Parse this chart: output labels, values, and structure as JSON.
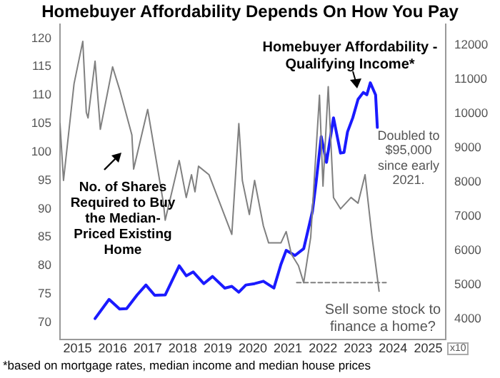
{
  "chart_data": {
    "type": "line",
    "title": "Homebuyer Affordability Depends On How You Pay",
    "y2label": "x10",
    "xlim": [
      2015,
      2026
    ],
    "xticks": [
      {
        "value": 2015.5,
        "label": "2015"
      },
      {
        "value": 2016.5,
        "label": "2016"
      },
      {
        "value": 2017.5,
        "label": "2017"
      },
      {
        "value": 2018.5,
        "label": "2018"
      },
      {
        "value": 2019.5,
        "label": "2019"
      },
      {
        "value": 2020.5,
        "label": "2020"
      },
      {
        "value": 2021.5,
        "label": "2021"
      },
      {
        "value": 2022.5,
        "label": "2022"
      },
      {
        "value": 2023.5,
        "label": "2023"
      },
      {
        "value": 2024.5,
        "label": "2024"
      },
      {
        "value": 2025.5,
        "label": "2025"
      }
    ],
    "ylim": [
      67,
      122.5
    ],
    "yticks": [
      70,
      75,
      80,
      85,
      90,
      95,
      100,
      105,
      110,
      115,
      120
    ],
    "y2lim": [
      3400,
      12600
    ],
    "y2ticks": [
      4000,
      5000,
      6000,
      7000,
      8000,
      9000,
      10000,
      11000,
      12000
    ],
    "grid": false,
    "legend": false,
    "marker": "none",
    "series": [
      {
        "name": "No. of Shares Required to Buy the Median- Priced Existing Home",
        "color": "#808080",
        "x": [
          2015,
          2015.1,
          2015.4,
          2015.65,
          2015.75,
          2015.8,
          2016,
          2016.15,
          2016.5,
          2016.7,
          2017.05,
          2017.1,
          2017.5,
          2017.95,
          2018,
          2018.4,
          2018.6,
          2018.75,
          2018.85,
          2018.95,
          2019.25,
          2019.9,
          2020.1,
          2020.2,
          2020.4,
          2020.55,
          2020.8,
          2020.95,
          2021.3,
          2021.45,
          2021.6,
          2021.8,
          2021.95,
          2022.15,
          2022.4,
          2022.5,
          2022.65,
          2022.8,
          2023,
          2023.3,
          2023.5,
          2023.7,
          2023.9,
          2024.1
        ],
        "values": [
          105,
          95,
          112,
          119.5,
          107,
          106,
          116,
          104,
          115,
          111,
          103,
          97,
          107.5,
          91,
          88,
          98.5,
          92,
          96,
          93,
          97.5,
          96,
          85.5,
          105,
          95,
          89,
          95,
          87,
          84,
          84,
          86,
          82,
          80,
          77,
          85,
          110,
          94,
          111.5,
          92,
          90,
          92,
          91,
          96,
          85,
          75.5
        ]
      },
      {
        "name": "Homebuyer Affordability - Qualifying Income*",
        "color": "#1a1aff",
        "axis": "y2",
        "x": [
          2016,
          2016.4,
          2016.7,
          2016.9,
          2017.2,
          2017.45,
          2017.7,
          2018,
          2018.4,
          2018.6,
          2018.8,
          2019.1,
          2019.35,
          2019.7,
          2019.9,
          2020.1,
          2020.3,
          2020.55,
          2020.8,
          2021.1,
          2021.3,
          2021.45,
          2021.7,
          2021.95,
          2022.2,
          2022.3,
          2022.45,
          2022.6,
          2022.8,
          2023,
          2023.1,
          2023.2,
          2023.35,
          2023.5,
          2023.65,
          2023.75,
          2023.85,
          2024,
          2024.05
        ],
        "values": [
          4010,
          4570,
          4290,
          4300,
          4700,
          4990,
          4690,
          4700,
          5550,
          5260,
          5370,
          5030,
          5240,
          4900,
          4950,
          4780,
          4990,
          5030,
          5100,
          4900,
          5590,
          6000,
          5850,
          6050,
          7140,
          7960,
          9320,
          8570,
          9870,
          8840,
          8860,
          9460,
          9870,
          10410,
          10610,
          10540,
          10890,
          10540,
          9590
        ]
      },
      {
        "type": "line",
        "color": "#808080",
        "line_style": "dashed",
        "x": [
          2021.75,
          2024.3
        ],
        "values": [
          77,
          77
        ]
      }
    ],
    "annotations": [
      "Doubled to $95,000 since early 2021.",
      "Sell some stock to finance a home?",
      "*based on mortgage rates, median income and median house prices"
    ]
  }
}
